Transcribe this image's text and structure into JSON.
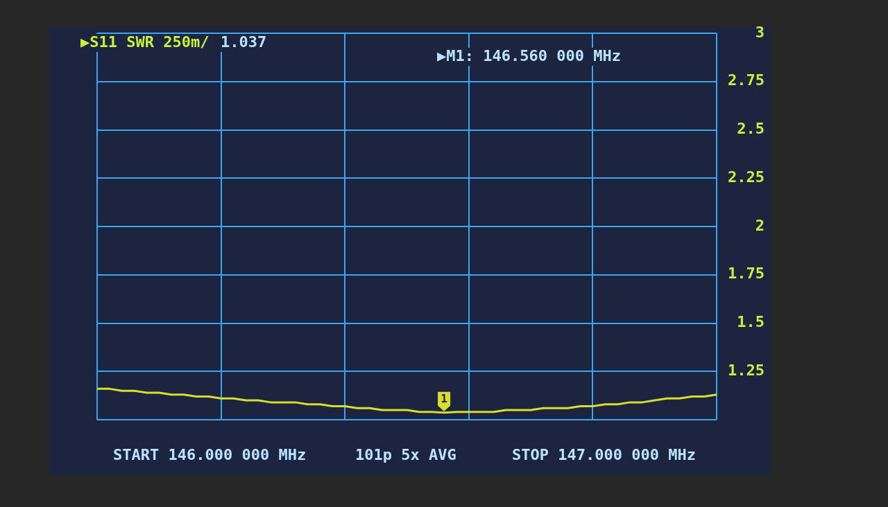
{
  "chart_data": {
    "type": "line",
    "categories": [
      null,
      null,
      null,
      null,
      null,
      null,
      null,
      null,
      null,
      null,
      null,
      null,
      null,
      null,
      null,
      null,
      null,
      null,
      null,
      null,
      null,
      null,
      null,
      null,
      null,
      null,
      null,
      null,
      null,
      null,
      null,
      null,
      null,
      null,
      null,
      null,
      null,
      null,
      null,
      null,
      null,
      null,
      null,
      null,
      null,
      null,
      null,
      null,
      null,
      null,
      null
    ],
    "values": [
      1.16,
      1.16,
      1.15,
      1.15,
      1.14,
      1.14,
      1.13,
      1.13,
      1.12,
      1.12,
      1.11,
      1.11,
      1.1,
      1.1,
      1.09,
      1.09,
      1.09,
      1.08,
      1.08,
      1.07,
      1.07,
      1.06,
      1.06,
      1.05,
      1.05,
      1.05,
      1.04,
      1.04,
      1.037,
      1.04,
      1.04,
      1.04,
      1.04,
      1.05,
      1.05,
      1.05,
      1.06,
      1.06,
      1.06,
      1.07,
      1.07,
      1.08,
      1.08,
      1.09,
      1.09,
      1.1,
      1.11,
      1.11,
      1.12,
      1.12,
      1.13
    ],
    "color": "#d6e02c",
    "marker": "none",
    "line_style": "solid",
    "grid": true,
    "ylim": [
      1,
      3
    ],
    "yticks": [
      {
        "value": 1,
        "label": null
      },
      1.25,
      1.5,
      1.75,
      2,
      2.25,
      2.5,
      2.75,
      3
    ],
    "annotations": [
      "▶S11 SWR 250m/",
      "1.037",
      "▶M1: 146.560 000 MHz",
      "START 146.000 000 MHz",
      "101p 5x AVG",
      "STOP 147.000 000 MHz",
      {
        "text": "1",
        "y": 1.037
      }
    ]
  }
}
